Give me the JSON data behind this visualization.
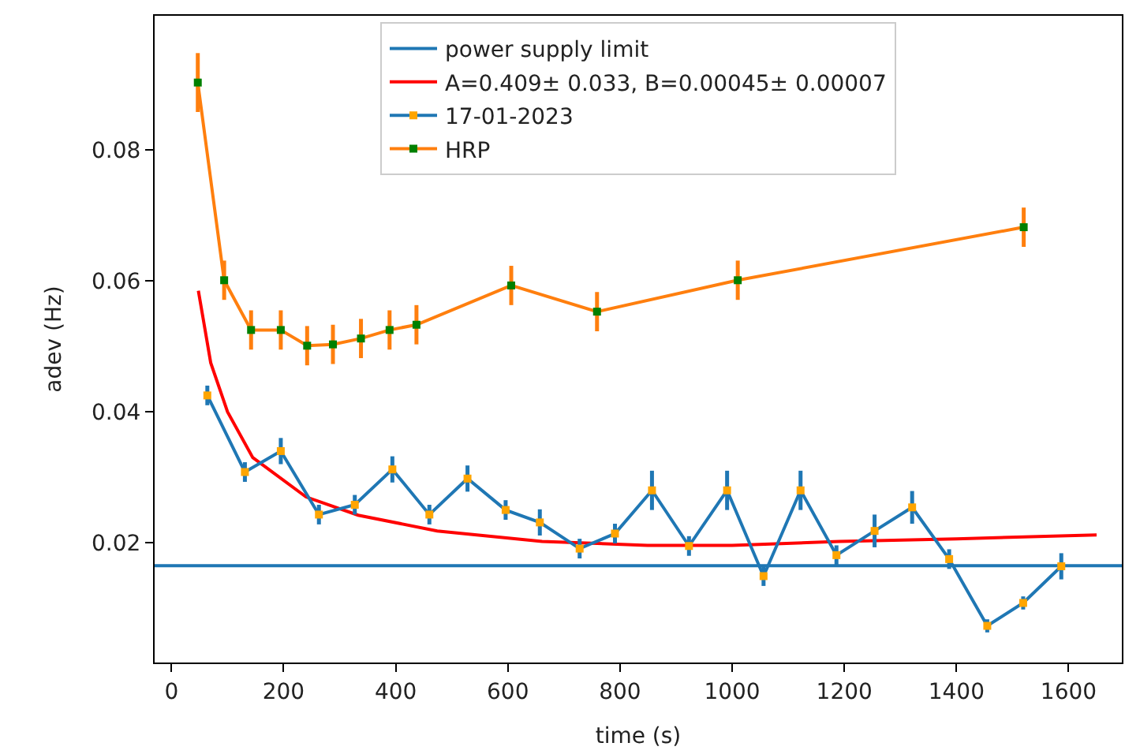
{
  "chart_data": {
    "type": "line",
    "xlabel": "time (s)",
    "ylabel": "adev (Hz)",
    "xlim": [
      -30,
      1695
    ],
    "ylim": [
      0.0017,
      0.1005
    ],
    "xticks": [
      0,
      200,
      400,
      600,
      800,
      1000,
      1200,
      1400,
      1600
    ],
    "yticks": [
      0.02,
      0.04,
      0.06,
      0.08
    ],
    "legend": "top",
    "marker": "square",
    "ref_lines": [
      {
        "axis": "y",
        "value": 0.0165,
        "label": "power supply limit",
        "color": "#1f77b4"
      }
    ],
    "series": [
      {
        "name": "A=0.409± 0.033, B=0.00045± 0.00007",
        "type": "line",
        "marker": "none",
        "color": "#ff0000",
        "x": [
          48,
          70,
          100,
          145,
          240,
          333,
          474,
          661,
          849,
          1000,
          1191,
          1400,
          1650
        ],
        "values": [
          0.0585,
          0.0475,
          0.04,
          0.033,
          0.027,
          0.0242,
          0.0218,
          0.0202,
          0.0196,
          0.0196,
          0.0202,
          0.0206,
          0.0212
        ]
      },
      {
        "name": "17-01-2023",
        "color": "#1f77b4",
        "colors": [
          "#ffa500",
          "#ffa500",
          "#ffa500",
          "#ffa500",
          "#ffa500",
          "#ffa500",
          "#ffa500",
          "#ffa500",
          "#ffa500",
          "#ffa500",
          "#ffa500",
          "#ffa500",
          "#ffa500",
          "#ffa500",
          "#ffa500",
          "#ffa500",
          "#ffa500",
          "#ffa500",
          "#ffa500",
          "#ffa500",
          "#ffa500",
          "#ffa500",
          "#ffa500",
          "#ffa500"
        ],
        "x": [
          64,
          131,
          195,
          263,
          327,
          394,
          460,
          528,
          596,
          657,
          728,
          791,
          857,
          923,
          991,
          1056,
          1122,
          1186,
          1254,
          1321,
          1387,
          1455,
          1519,
          1587
        ],
        "values": [
          0.0425,
          0.0308,
          0.034,
          0.0243,
          0.0258,
          0.0312,
          0.0243,
          0.0298,
          0.025,
          0.0231,
          0.0191,
          0.0214,
          0.028,
          0.0195,
          0.028,
          0.0149,
          0.028,
          0.0181,
          0.0218,
          0.0254,
          0.0175,
          0.0073,
          0.0108,
          0.0164
        ],
        "errors": [
          0.0015,
          0.0015,
          0.002,
          0.0015,
          0.0015,
          0.002,
          0.0015,
          0.002,
          0.0015,
          0.002,
          0.0015,
          0.0015,
          0.003,
          0.0015,
          0.003,
          0.0015,
          0.003,
          0.0015,
          0.0025,
          0.0025,
          0.0015,
          0.001,
          0.001,
          0.002
        ]
      },
      {
        "name": "HRP",
        "color": "#ff7f0e",
        "colors": [
          "#008000",
          "#008000",
          "#008000",
          "#008000",
          "#008000",
          "#008000",
          "#008000",
          "#008000",
          "#008000",
          "#008000",
          "#008000",
          "#008000",
          "#008000"
        ],
        "x": [
          47,
          94,
          142,
          195,
          242,
          288,
          338,
          389,
          437,
          606,
          759,
          1010,
          1520
        ],
        "values": [
          0.0903,
          0.0601,
          0.0525,
          0.0525,
          0.0501,
          0.0503,
          0.0512,
          0.0525,
          0.0533,
          0.0593,
          0.0553,
          0.0601,
          0.0682
        ],
        "errors": [
          0.0045,
          0.003,
          0.003,
          0.003,
          0.003,
          0.003,
          0.003,
          0.003,
          0.003,
          0.003,
          0.003,
          0.003,
          0.003
        ]
      }
    ]
  }
}
